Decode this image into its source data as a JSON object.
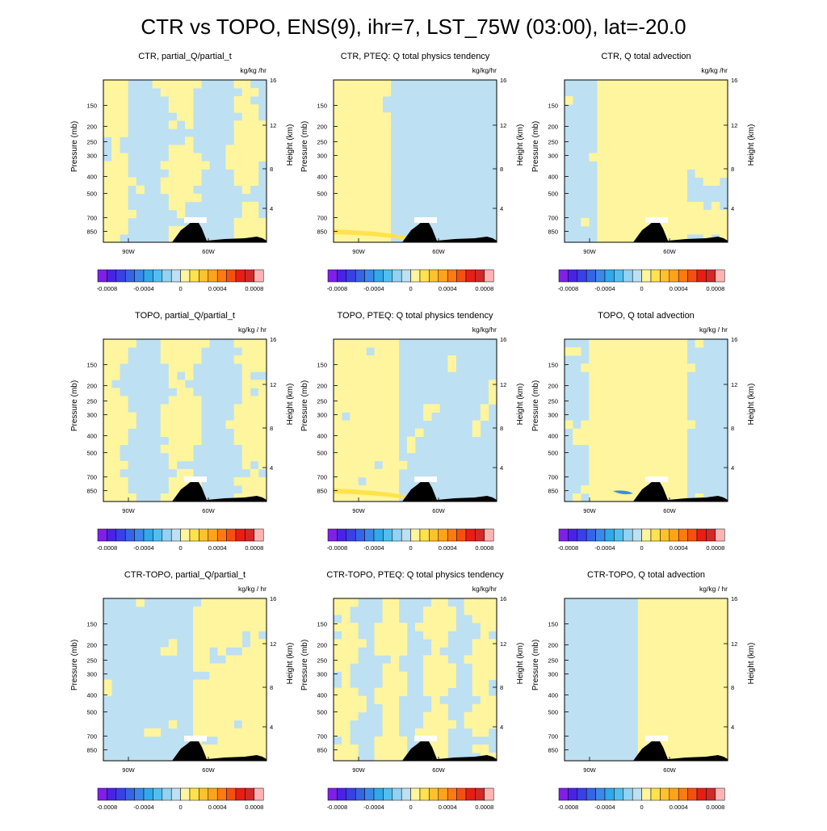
{
  "figure": {
    "title": "CTR vs TOPO, ENS(9), ihr=7, LST_75W (03:00), lat=-20.0"
  },
  "colors": {
    "positive_small": "#FEF59E",
    "negative_small": "#BDE0F2",
    "terrain": "#000000",
    "label_bars": [
      "#7F1FE8",
      "#4A22E6",
      "#3940E8",
      "#3564E6",
      "#3C88EA",
      "#30A8EA",
      "#52BEF0",
      "#92D2F2",
      "#BDE0F2",
      "#FEF59E",
      "#FFE24E",
      "#FFC22E",
      "#FFA41A",
      "#FF7A10",
      "#F55010",
      "#E81E14",
      "#D22828",
      "#FFB4B4"
    ]
  },
  "chart_data": [
    {
      "type": "contour",
      "row": 0,
      "col": 0,
      "title": "CTR, partial_Q/partial_t",
      "units": "kg/kg /hr",
      "ylabel_left": "Pressure (mb)",
      "ylabel_right": "Height (km)",
      "pressure_ticks": [
        "150",
        "200",
        "250",
        "300",
        "400",
        "500",
        "700",
        "850"
      ],
      "height_ticks": [
        "16",
        "12",
        "8",
        "4"
      ],
      "x_ticks": [
        "90W",
        "60W"
      ],
      "colorbar_labels": [
        "-0.0008",
        "-0.0004",
        "0",
        "0.0004",
        "0.0008"
      ],
      "pattern": "ctr_dqdt"
    },
    {
      "type": "contour",
      "row": 0,
      "col": 1,
      "title": "CTR, PTEQ: Q total physics tendency",
      "units": "kg/kg/hr",
      "ylabel_left": "Pressure (mb)",
      "ylabel_right": "Height (km)",
      "pressure_ticks": [
        "150",
        "200",
        "250",
        "300",
        "400",
        "500",
        "700",
        "850"
      ],
      "height_ticks": [
        "16",
        "12",
        "8",
        "4"
      ],
      "x_ticks": [
        "90W",
        "60W"
      ],
      "colorbar_labels": [
        "-0.0008",
        "-0.0004",
        "0",
        "0.0004",
        "0.0008"
      ],
      "pattern": "ctr_pteq"
    },
    {
      "type": "contour",
      "row": 0,
      "col": 2,
      "title": "CTR, Q total advection",
      "units": "kg/kg /hr",
      "ylabel_left": "Pressure (mb)",
      "ylabel_right": "Height (km)",
      "pressure_ticks": [
        "150",
        "200",
        "250",
        "300",
        "400",
        "500",
        "700",
        "850"
      ],
      "height_ticks": [
        "16",
        "12",
        "8",
        "4"
      ],
      "x_ticks": [
        "90W",
        "60W"
      ],
      "colorbar_labels": [
        "-0.0008",
        "-0.0004",
        "0",
        "0.0004",
        "0.0008"
      ],
      "pattern": "ctr_adv"
    },
    {
      "type": "contour",
      "row": 1,
      "col": 0,
      "title": "TOPO, partial_Q/partial_t",
      "units": "kg/kg / hr",
      "ylabel_left": "Pressure (mb)",
      "ylabel_right": "Height (km)",
      "pressure_ticks": [
        "150",
        "200",
        "250",
        "300",
        "400",
        "500",
        "700",
        "850"
      ],
      "height_ticks": [
        "16",
        "12",
        "8",
        "4"
      ],
      "x_ticks": [
        "90W",
        "60W"
      ],
      "colorbar_labels": [
        "-0.0008",
        "-0.0004",
        "0",
        "0.0004",
        "0.0008"
      ],
      "pattern": "topo_dqdt"
    },
    {
      "type": "contour",
      "row": 1,
      "col": 1,
      "title": "TOPO, PTEQ: Q total physics tendency",
      "units": "kg/kg/hr",
      "ylabel_left": "Pressure (mb)",
      "ylabel_right": "Height (km)",
      "pressure_ticks": [
        "150",
        "200",
        "250",
        "300",
        "400",
        "500",
        "700",
        "850"
      ],
      "height_ticks": [
        "16",
        "12",
        "8",
        "4"
      ],
      "x_ticks": [
        "90W",
        "60W"
      ],
      "colorbar_labels": [
        "-0.0008",
        "-0.0004",
        "0",
        "0.0004",
        "0.0008"
      ],
      "pattern": "topo_pteq"
    },
    {
      "type": "contour",
      "row": 1,
      "col": 2,
      "title": "TOPO, Q total advection",
      "units": "kg/kg / hr",
      "ylabel_left": "Pressure (mb)",
      "ylabel_right": "Height (km)",
      "pressure_ticks": [
        "150",
        "200",
        "250",
        "300",
        "400",
        "500",
        "700",
        "850"
      ],
      "height_ticks": [
        "16",
        "12",
        "8",
        "4"
      ],
      "x_ticks": [
        "90W",
        "60W"
      ],
      "colorbar_labels": [
        "-0.0008",
        "-0.0004",
        "0",
        "0.0004",
        "0.0008"
      ],
      "pattern": "topo_adv"
    },
    {
      "type": "contour",
      "row": 2,
      "col": 0,
      "title": "CTR-TOPO, partial_Q/partial_t",
      "units": "kg/kg / hr",
      "ylabel_left": "Pressure (mb)",
      "ylabel_right": "Height (km)",
      "pressure_ticks": [
        "150",
        "200",
        "250",
        "300",
        "400",
        "500",
        "700",
        "850"
      ],
      "height_ticks": [
        "16",
        "12",
        "8",
        "4"
      ],
      "x_ticks": [
        "90W",
        "60W"
      ],
      "colorbar_labels": [
        "-0.0008",
        "-0.0004",
        "0",
        "0.0004",
        "0.0008"
      ],
      "pattern": "diff_dqdt"
    },
    {
      "type": "contour",
      "row": 2,
      "col": 1,
      "title": "CTR-TOPO, PTEQ: Q total physics tendency",
      "units": "kg/kg/hr",
      "ylabel_left": "Pressure (mb)",
      "ylabel_right": "Height (km)",
      "pressure_ticks": [
        "150",
        "200",
        "250",
        "300",
        "400",
        "500",
        "700",
        "850"
      ],
      "height_ticks": [
        "16",
        "12",
        "8",
        "4"
      ],
      "x_ticks": [
        "90W",
        "60W"
      ],
      "colorbar_labels": [
        "-0.0008",
        "-0.0004",
        "0",
        "0.0004",
        "0.0008"
      ],
      "pattern": "diff_pteq"
    },
    {
      "type": "contour",
      "row": 2,
      "col": 2,
      "title": "CTR-TOPO, Q total advection",
      "units": "kg/kg / hr",
      "ylabel_left": "Pressure (mb)",
      "ylabel_right": "Height (km)",
      "pressure_ticks": [
        "150",
        "200",
        "250",
        "300",
        "400",
        "500",
        "700",
        "850"
      ],
      "height_ticks": [
        "16",
        "12",
        "8",
        "4"
      ],
      "x_ticks": [
        "90W",
        "60W"
      ],
      "colorbar_labels": [
        "-0.0008",
        "-0.0004",
        "0",
        "0.0004",
        "0.0008"
      ],
      "pattern": "diff_adv"
    }
  ]
}
